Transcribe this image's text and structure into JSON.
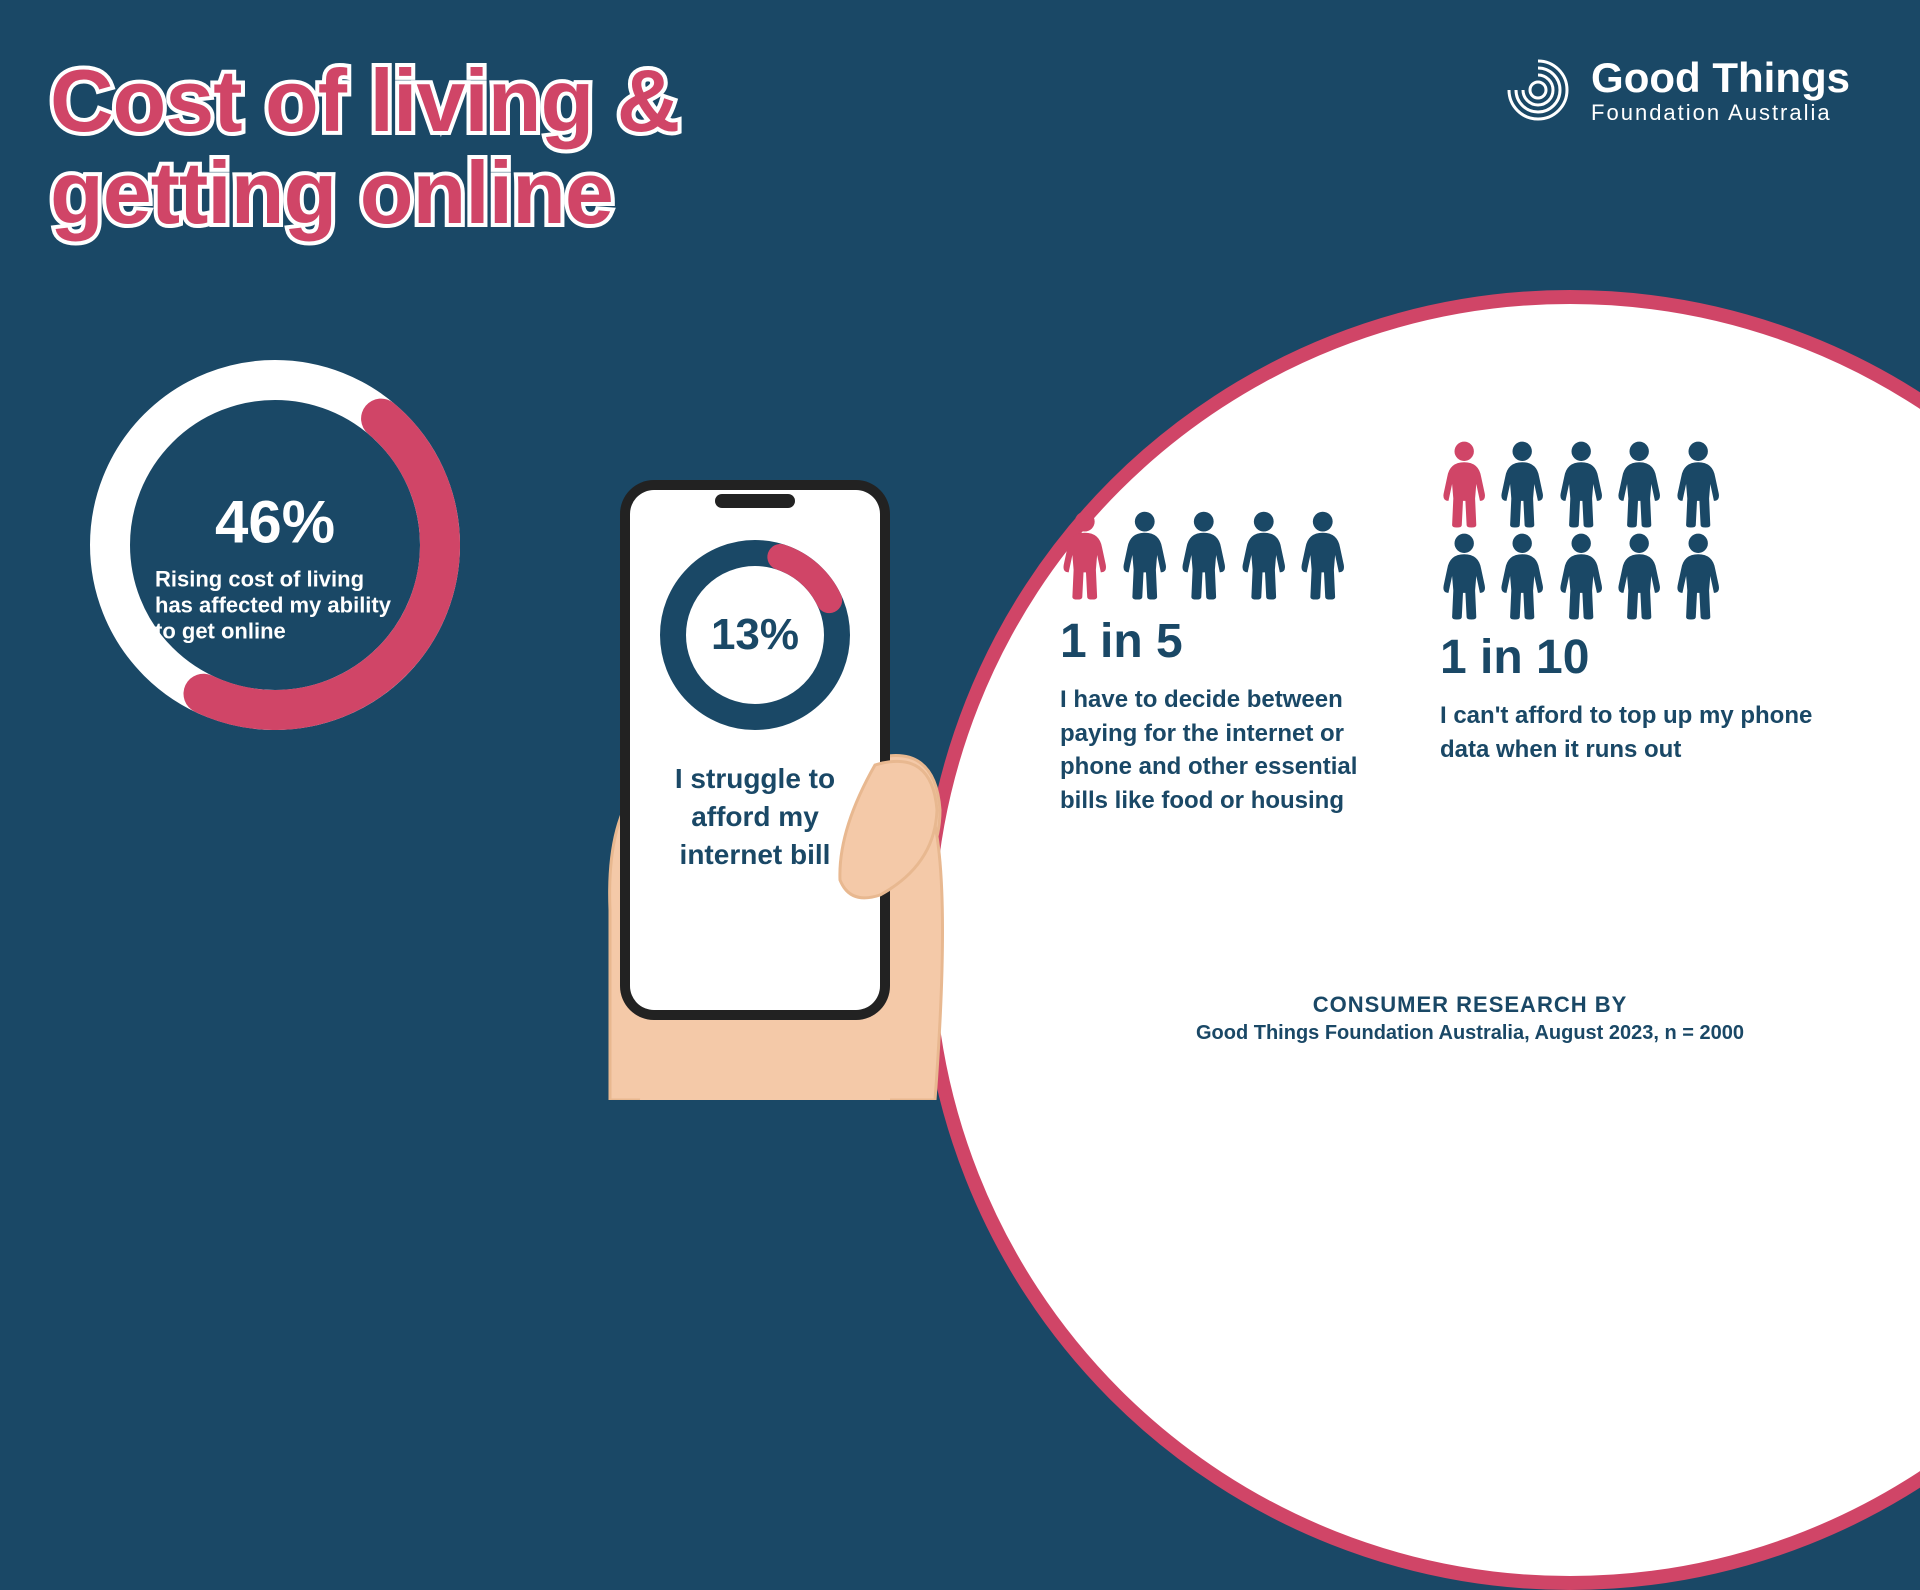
{
  "title_line1": "Cost of living &",
  "title_line2": "getting online",
  "logo": {
    "line1": "Good Things",
    "line2": "Foundation Australia"
  },
  "colors": {
    "bg": "#1a4866",
    "accent": "#d04567",
    "white": "#ffffff",
    "skin": "#f4c9a8",
    "skin_dark": "#e8b890"
  },
  "donut1": {
    "value": 46,
    "display": "46%",
    "label": "Rising cost of living has affected my ability to get online",
    "size": 370,
    "stroke": 40,
    "track_color": "#ffffff",
    "fill_color": "#d04567",
    "start_angle": 40
  },
  "donut2": {
    "value": 13,
    "display": "13%",
    "label": "I struggle to afford my internet bill",
    "size": 190,
    "stroke": 26,
    "track_color": "#1a4866",
    "fill_color": "#d04567",
    "start_angle": 18
  },
  "stat1": {
    "total": 5,
    "highlighted": 1,
    "headline": "1 in 5",
    "body": "I have to decide between paying for  the internet or phone and other essential bills like food or housing",
    "icon_color": "#1a4866",
    "highlight_color": "#d04567"
  },
  "stat2": {
    "total": 10,
    "highlighted": 1,
    "rows": 2,
    "headline": "1 in 10",
    "body": "I can't afford to top up my phone data when it runs out",
    "icon_color": "#1a4866",
    "highlight_color": "#d04567"
  },
  "footer": {
    "line1": "CONSUMER RESEARCH BY",
    "line2": "Good Things Foundation Australia, August 2023, n = 2000"
  }
}
